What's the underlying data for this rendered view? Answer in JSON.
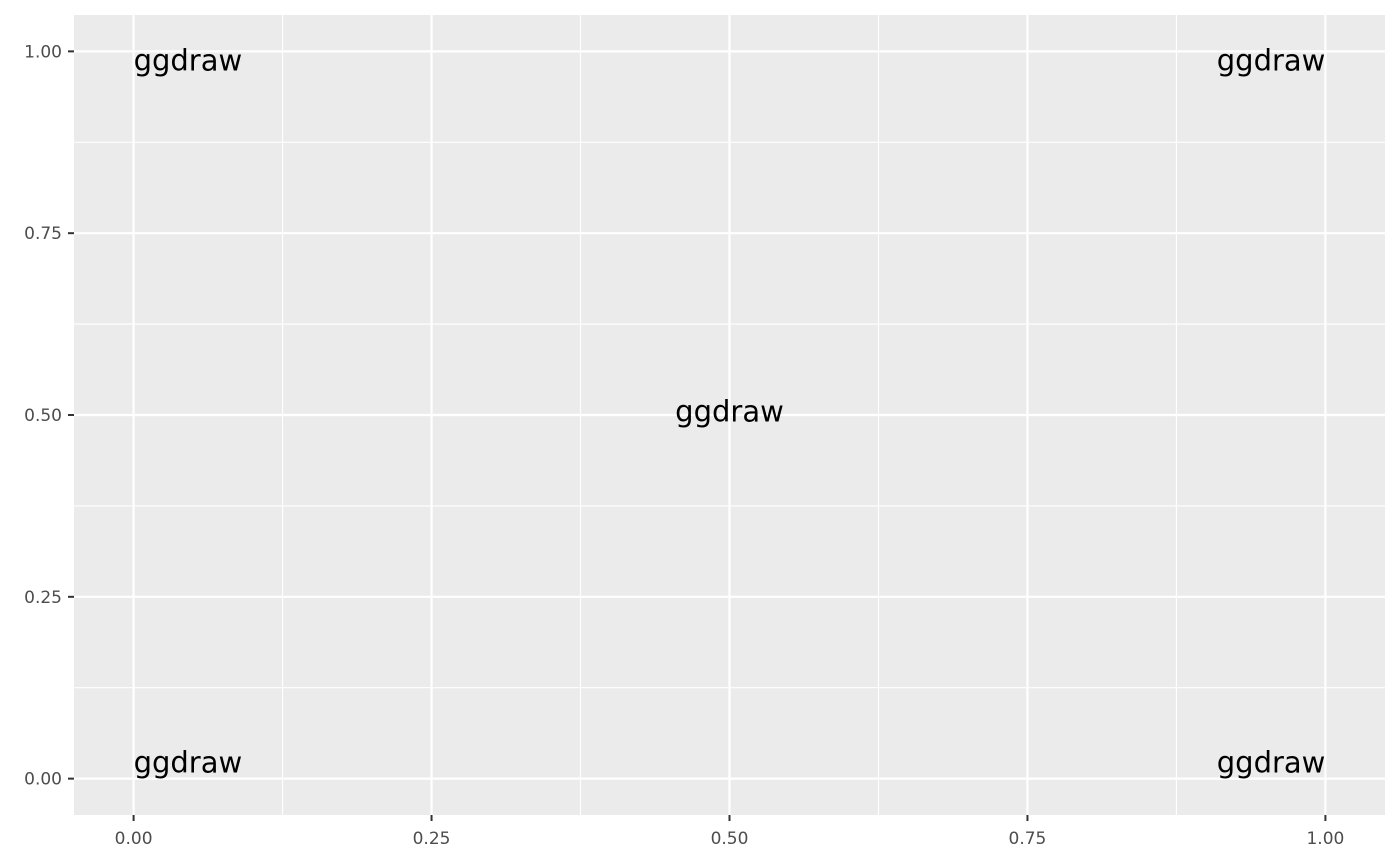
{
  "chart_data": {
    "type": "scatter",
    "title": "",
    "xlabel": "",
    "ylabel": "",
    "xlim": [
      -0.05,
      1.05
    ],
    "ylim": [
      -0.05,
      1.05
    ],
    "x_major_ticks": [
      0,
      0.25,
      0.5,
      0.75,
      1
    ],
    "x_tick_labels": [
      "0.00",
      "0.25",
      "0.50",
      "0.75",
      "1.00"
    ],
    "x_minor_ticks": [
      0.125,
      0.375,
      0.625,
      0.875
    ],
    "y_major_ticks": [
      0,
      0.25,
      0.5,
      0.75,
      1
    ],
    "y_tick_labels": [
      "0.00",
      "0.25",
      "0.50",
      "0.75",
      "1.00"
    ],
    "y_minor_ticks": [
      0.125,
      0.375,
      0.625,
      0.875
    ],
    "grid": true,
    "legend": "none",
    "panel_background": "#ebebeb",
    "grid_color": "#ffffff",
    "annotations": [
      {
        "text": "ggdraw",
        "x": 0,
        "y": 0,
        "hjust": 0,
        "vjust": 0
      },
      {
        "text": "ggdraw",
        "x": 0,
        "y": 1,
        "hjust": 0,
        "vjust": 1
      },
      {
        "text": "ggdraw",
        "x": 1,
        "y": 0,
        "hjust": 1,
        "vjust": 0
      },
      {
        "text": "ggdraw",
        "x": 1,
        "y": 1,
        "hjust": 1,
        "vjust": 1
      },
      {
        "text": "ggdraw",
        "x": 0.5,
        "y": 0.5,
        "hjust": 0.5,
        "vjust": 0.5
      }
    ]
  }
}
